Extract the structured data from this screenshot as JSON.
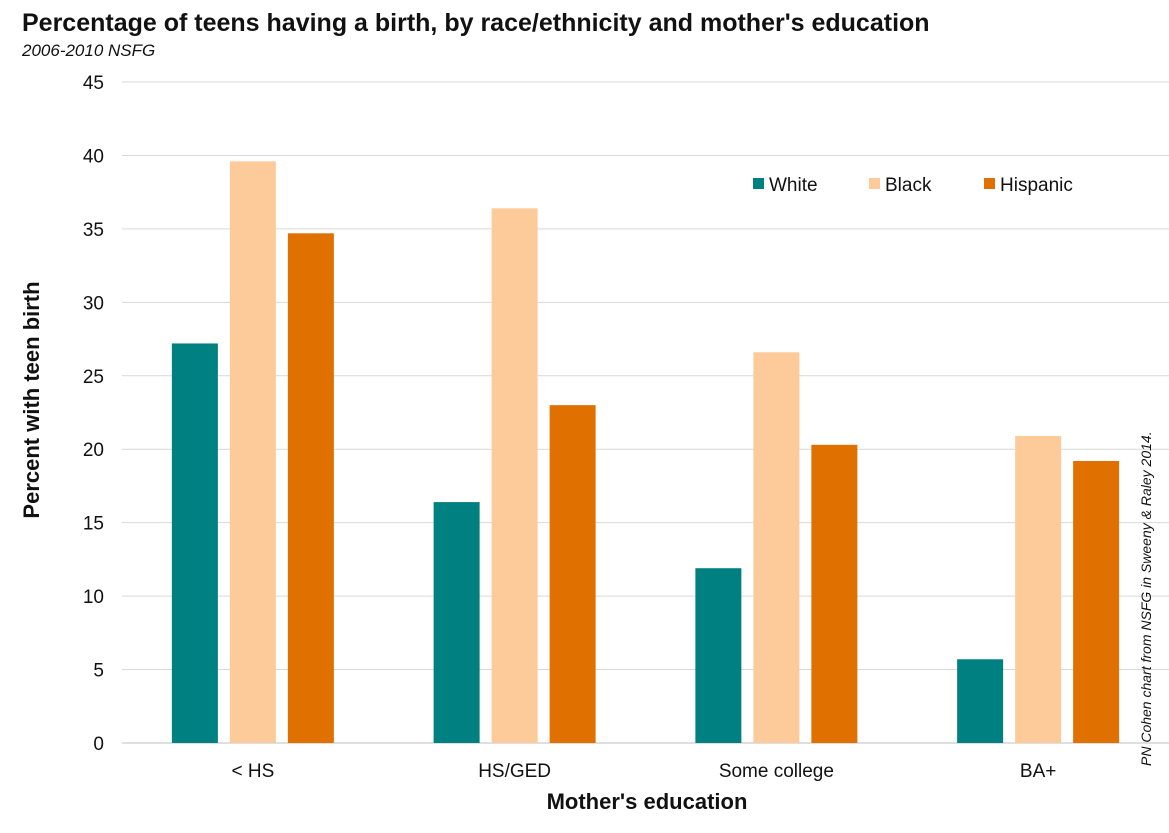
{
  "chart_data": {
    "type": "bar",
    "title": "Percentage of teens having a birth, by race/ethnicity and mother's education",
    "subtitle": "2006-2010 NSFG",
    "xlabel": "Mother's education",
    "ylabel": "Percent with teen birth",
    "categories": [
      "< HS",
      "HS/GED",
      "Some college",
      "BA+"
    ],
    "series": [
      {
        "name": "White",
        "color": "#008080",
        "values": [
          27.2,
          16.4,
          11.9,
          5.7
        ]
      },
      {
        "name": "Black",
        "color": "#FDCB9A",
        "values": [
          39.6,
          36.4,
          26.6,
          20.9
        ]
      },
      {
        "name": "Hispanic",
        "color": "#E07000",
        "values": [
          34.7,
          23.0,
          20.3,
          19.2
        ]
      }
    ],
    "ylim": [
      0,
      45
    ],
    "yticks": [
      "0",
      "5",
      "10",
      "15",
      "20",
      "25",
      "30",
      "35",
      "40",
      "45"
    ],
    "grid": true,
    "legend_position": "top-right",
    "source_note": "PN Cohen chart from NSFG in Sweeny & Raley 2014."
  }
}
